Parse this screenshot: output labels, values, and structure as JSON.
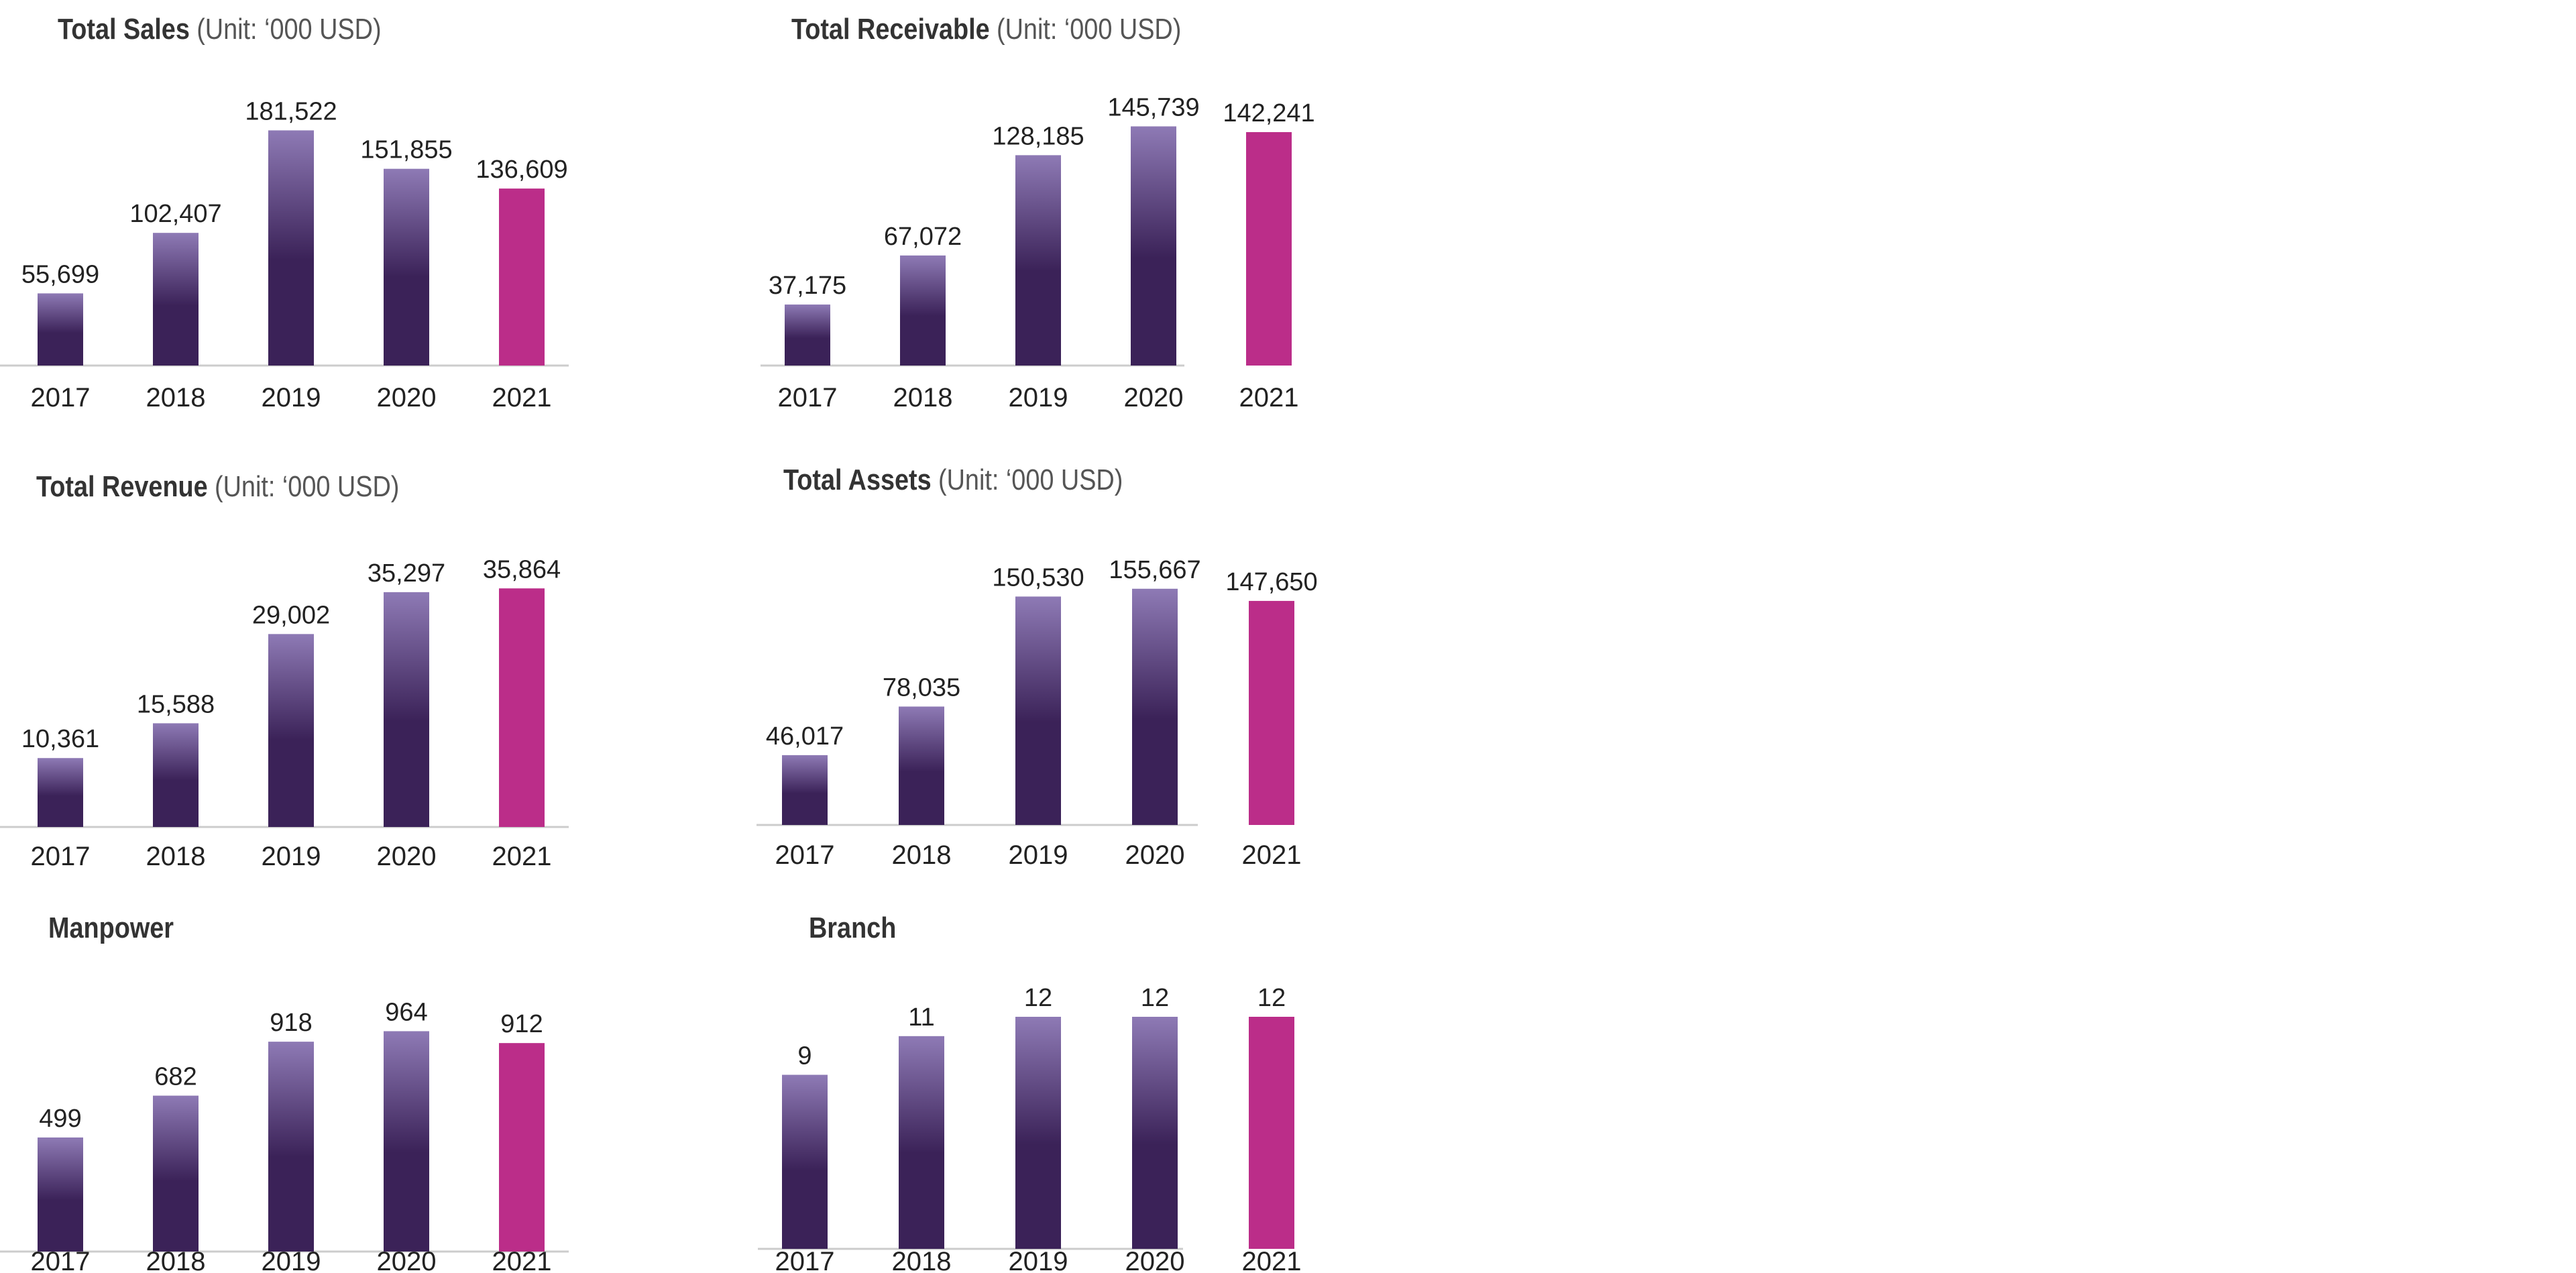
{
  "chart_data": [
    {
      "type": "bar",
      "title": "Total Sales",
      "unit": "(Unit: ‘000 USD)",
      "categories": [
        "2017",
        "2018",
        "2019",
        "2020",
        "2021"
      ],
      "values": [
        55699,
        102407,
        181522,
        151855,
        136609
      ],
      "value_labels": [
        "55,699",
        "102,407",
        "181,522",
        "151,855",
        "136,609"
      ],
      "ylim": [
        0,
        190000
      ],
      "grid": false,
      "legend": "none"
    },
    {
      "type": "bar",
      "title": "Total Receivable",
      "unit": "(Unit: ‘000 USD)",
      "categories": [
        "2017",
        "2018",
        "2019",
        "2020",
        "2021"
      ],
      "values": [
        37175,
        67072,
        128185,
        145739,
        142241
      ],
      "value_labels": [
        "37,175",
        "67,072",
        "128,185",
        "145,739",
        "142,241"
      ],
      "ylim": [
        0,
        150000
      ],
      "grid": false,
      "legend": "none"
    },
    {
      "type": "bar",
      "title": "Total Revenue",
      "unit": "(Unit: ‘000 USD)",
      "categories": [
        "2017",
        "2018",
        "2019",
        "2020",
        "2021"
      ],
      "values": [
        10361,
        15588,
        29002,
        35297,
        35864
      ],
      "value_labels": [
        "10,361",
        "15,588",
        "29,002",
        "35,297",
        "35,864"
      ],
      "ylim": [
        0,
        37000
      ],
      "grid": false,
      "legend": "none"
    },
    {
      "type": "bar",
      "title": "Total Assets",
      "unit": "(Unit: ‘000 USD)",
      "categories": [
        "2017",
        "2018",
        "2019",
        "2020",
        "2021"
      ],
      "values": [
        46017,
        78035,
        150530,
        155667,
        147650
      ],
      "value_labels": [
        "46,017",
        "78,035",
        "150,530",
        "155,667",
        "147,650"
      ],
      "ylim": [
        0,
        160000
      ],
      "grid": false,
      "legend": "none"
    },
    {
      "type": "bar",
      "title": "Manpower",
      "unit": "",
      "categories": [
        "2017",
        "2018",
        "2019",
        "2020",
        "2021"
      ],
      "values": [
        499,
        682,
        918,
        964,
        912
      ],
      "value_labels": [
        "499",
        "682",
        "918",
        "964",
        "912"
      ],
      "ylim": [
        0,
        980
      ],
      "grid": false,
      "legend": "none"
    },
    {
      "type": "bar",
      "title": "Branch",
      "unit": "",
      "categories": [
        "2017",
        "2018",
        "2019",
        "2020",
        "2021"
      ],
      "values": [
        9,
        11,
        12,
        12,
        12
      ],
      "value_labels": [
        "9",
        "11",
        "12",
        "12",
        "12"
      ],
      "ylim": [
        0,
        12
      ],
      "grid": false,
      "legend": "none"
    }
  ],
  "colors": {
    "bar_gradient_top": "#8e7ab5",
    "bar_gradient_bottom": "#3b2258",
    "highlight_bar": "#bb2d89",
    "axis_line": "#cccccc",
    "title_text": "#333333",
    "unit_text": "#555555",
    "label_text": "#222222"
  }
}
